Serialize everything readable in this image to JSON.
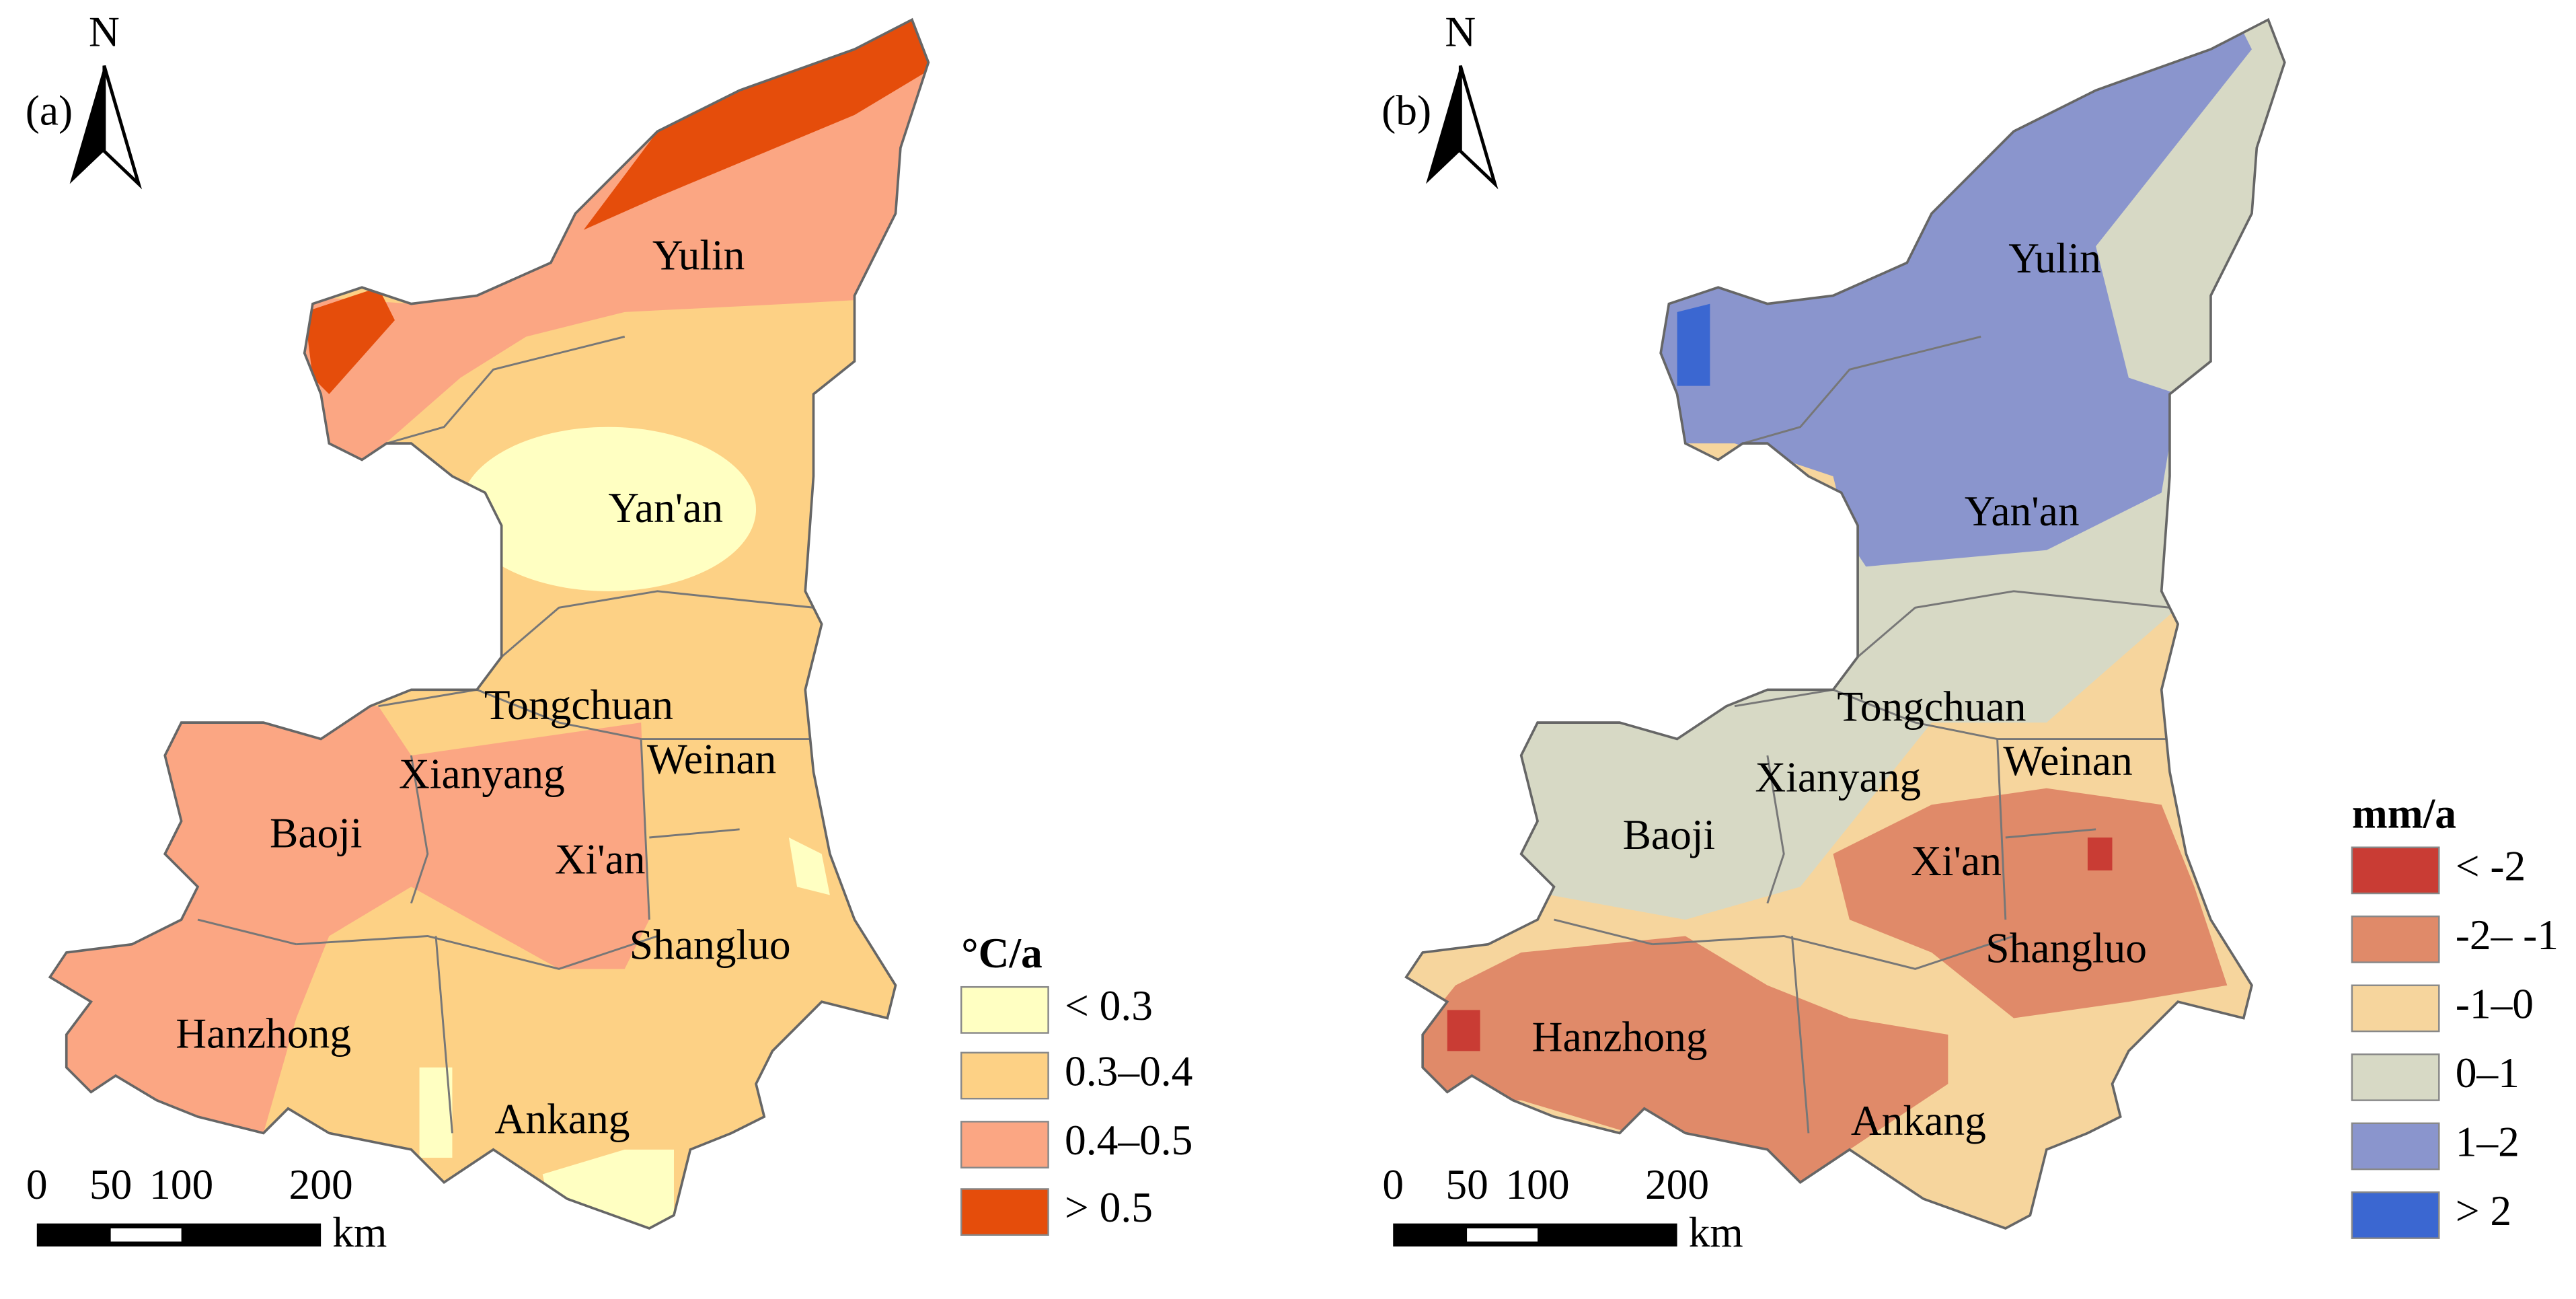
{
  "panels": [
    {
      "label": "(a)",
      "north": "N",
      "cities": [
        "Yulin",
        "Yan'an",
        "Tongchuan",
        "Weinan",
        "Xianyang",
        "Baoji",
        "Xi'an",
        "Shangluo",
        "Hanzhong",
        "Ankang"
      ],
      "scale_labels": [
        "0",
        "50",
        "100",
        "200"
      ],
      "scale_unit": "km",
      "legend": {
        "title": "°C/a",
        "items": [
          {
            "label": "< 0.3",
            "color": "#ffffc2"
          },
          {
            "label": "0.3–0.4",
            "color": "#fdd185"
          },
          {
            "label": "0.4–0.5",
            "color": "#fba683"
          },
          {
            "label": "> 0.5",
            "color": "#e54d0b"
          }
        ]
      }
    },
    {
      "label": "(b)",
      "north": "N",
      "cities": [
        "Yulin",
        "Yan'an",
        "Tongchuan",
        "Weinan",
        "Xianyang",
        "Baoji",
        "Xi'an",
        "Shangluo",
        "Hanzhong",
        "Ankang"
      ],
      "scale_labels": [
        "0",
        "50",
        "100",
        "200"
      ],
      "scale_unit": "km",
      "legend": {
        "title": "mm/a",
        "items": [
          {
            "label": "< -2",
            "color": "#c93c34"
          },
          {
            "label": "-2– -1",
            "color": "#e08a69"
          },
          {
            "label": "-1–0",
            "color": "#f6d59d"
          },
          {
            "label": "0–1",
            "color": "#d7d9c5"
          },
          {
            "label": "1–2",
            "color": "#8a95cd"
          },
          {
            "label": "> 2",
            "color": "#3b67d1"
          }
        ]
      }
    }
  ]
}
